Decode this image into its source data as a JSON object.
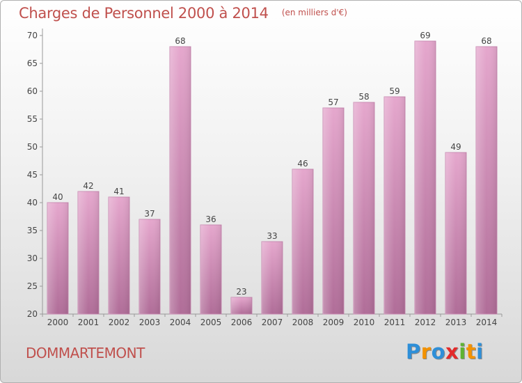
{
  "chart_data": {
    "type": "bar",
    "title": "Charges de Personnel 2000 à 2014",
    "subtitle": "(en milliers d'€)",
    "categories": [
      "2000",
      "2001",
      "2002",
      "2003",
      "2004",
      "2005",
      "2006",
      "2007",
      "2008",
      "2009",
      "2010",
      "2011",
      "2012",
      "2013",
      "2014"
    ],
    "values": [
      40,
      42,
      41,
      37,
      68,
      36,
      23,
      33,
      46,
      57,
      58,
      59,
      69,
      49,
      68
    ],
    "ylim": [
      20,
      70
    ],
    "yticks": [
      20,
      25,
      30,
      35,
      40,
      45,
      50,
      55,
      60,
      65,
      70
    ],
    "grid": false,
    "bar_color": "#d98fb8"
  },
  "footer": {
    "town": "DOMMARTEMONT",
    "logo_letters": [
      {
        "ch": "P",
        "color": "#2e8fd8"
      },
      {
        "ch": "r",
        "color": "#f39200"
      },
      {
        "ch": "o",
        "color": "#2e8fd8"
      },
      {
        "ch": "x",
        "color": "#e32b2b"
      },
      {
        "ch": "i",
        "color": "#5fb332"
      },
      {
        "ch": "t",
        "color": "#f39200"
      },
      {
        "ch": "i",
        "color": "#2e8fd8"
      }
    ]
  }
}
